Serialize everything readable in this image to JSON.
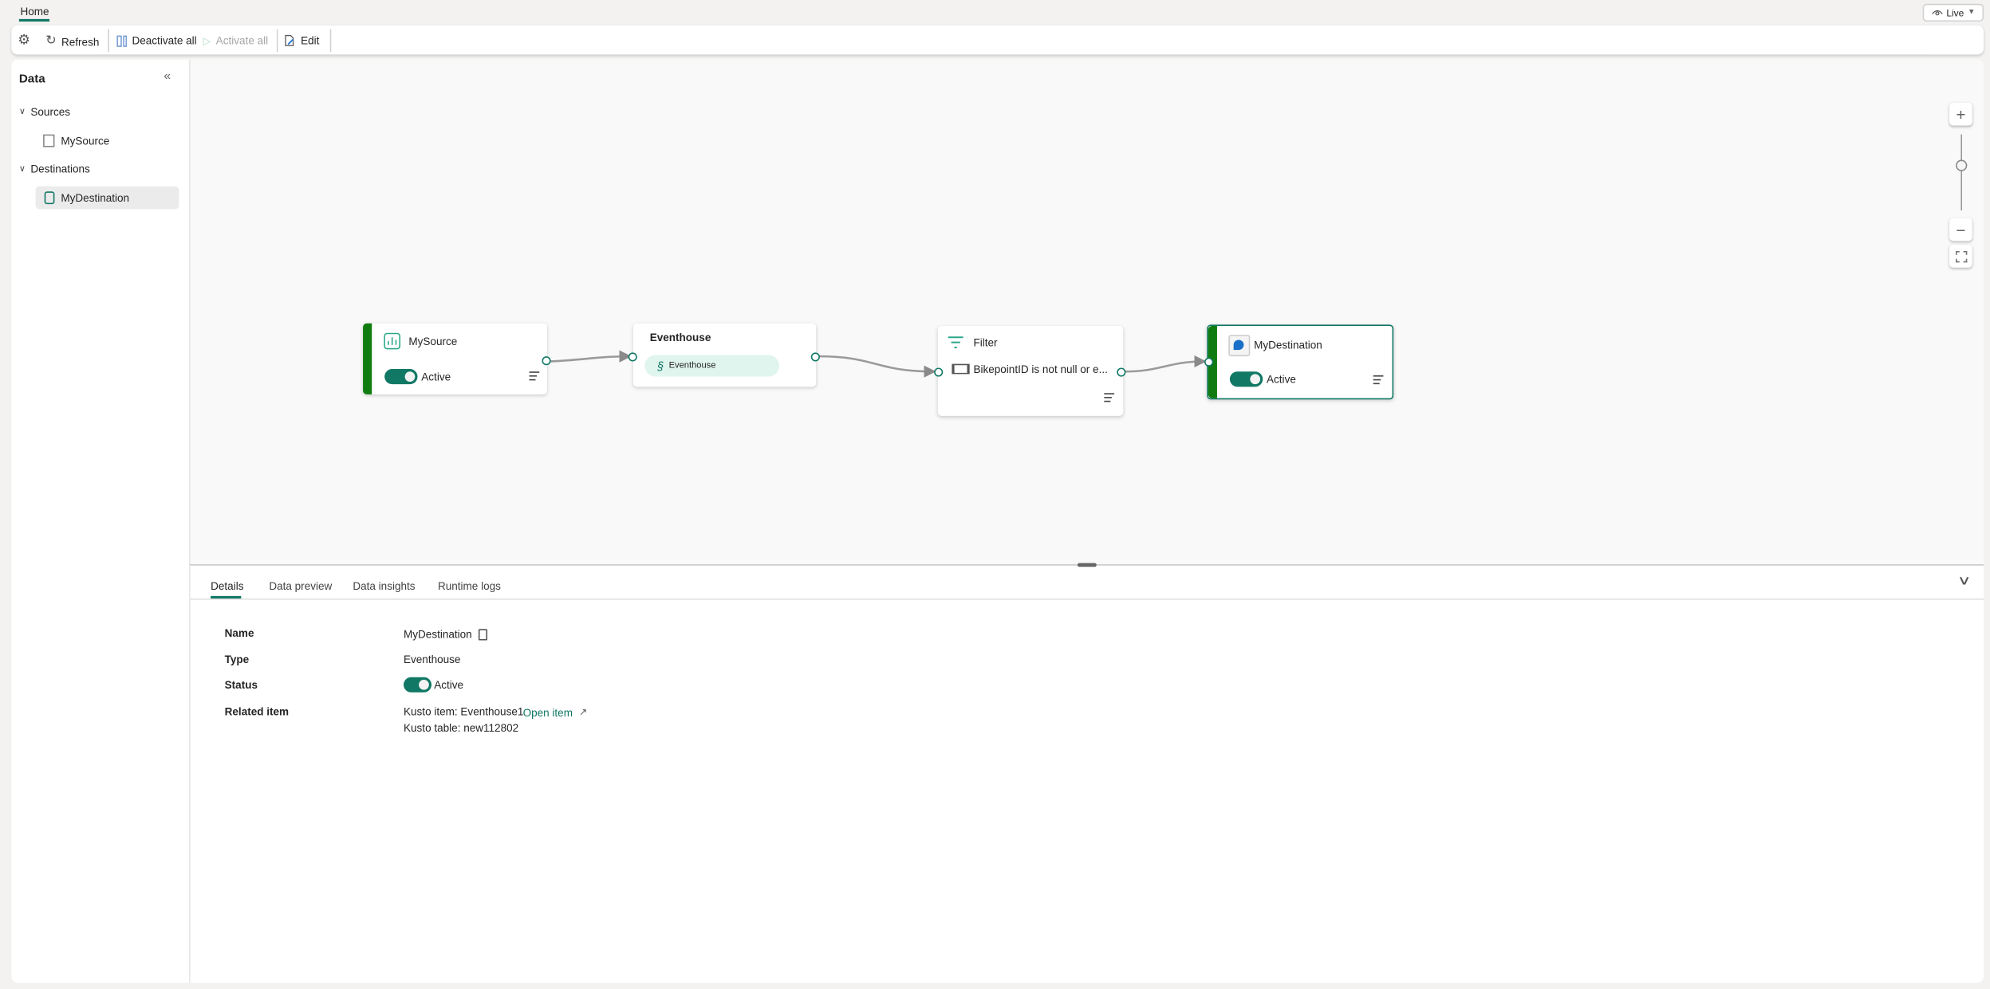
{
  "ribbon": {
    "tabs": [
      {
        "label": "Home",
        "active": true
      }
    ],
    "mode_button": {
      "label": "Live",
      "icon": "eye-icon"
    }
  },
  "toolbar": {
    "settings_icon": "gear-icon",
    "refresh_label": "Refresh",
    "deactivate_all_label": "Deactivate all",
    "activate_all_label": "Activate all",
    "edit_label": "Edit"
  },
  "sidebar": {
    "title": "Data",
    "sections": [
      {
        "label": "Sources",
        "items": [
          {
            "label": "MySource",
            "icon": "chart-icon"
          }
        ]
      },
      {
        "label": "Destinations",
        "items": [
          {
            "label": "MyDestination",
            "icon": "database-icon",
            "selected": true
          }
        ]
      }
    ]
  },
  "canvas": {
    "nodes": {
      "source": {
        "title": "MySource",
        "status": "Active"
      },
      "stream": {
        "title": "Eventhouse",
        "chip": "Eventhouse"
      },
      "filter": {
        "title": "Filter",
        "condition": "BikepointID is not null or e..."
      },
      "destination": {
        "title": "MyDestination",
        "status": "Active"
      }
    }
  },
  "details": {
    "tabs": [
      "Details",
      "Data preview",
      "Data insights",
      "Runtime logs"
    ],
    "active_tab": "Details",
    "fields": {
      "name_label": "Name",
      "name_value": "MyDestination",
      "type_label": "Type",
      "type_value": "Eventhouse",
      "status_label": "Status",
      "status_value": "Active",
      "related_label": "Related item",
      "kusto_item": "Kusto item: Eventhouse1",
      "open_item": "Open item",
      "kusto_table": "Kusto table: new112802"
    }
  },
  "colors": {
    "accent": "#117865",
    "active_bar": "#107c10",
    "chip_bg": "#e0f5ee"
  }
}
